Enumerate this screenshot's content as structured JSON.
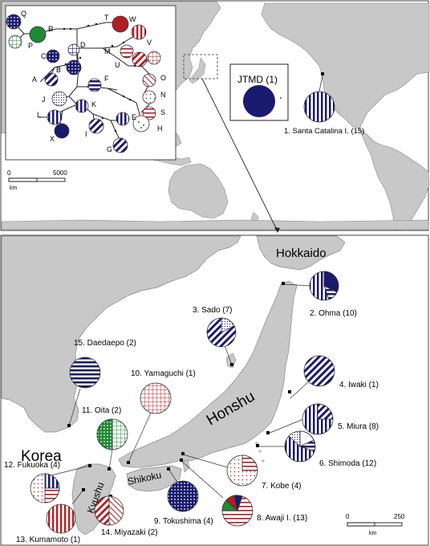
{
  "colors": {
    "navy": "#1a1a6e",
    "red": "#b01e23",
    "green": "#1e8a34",
    "land": "#c8c8c8",
    "sea": "#ffffff",
    "border": "#444444"
  },
  "world_map": {
    "jtmd_label": "JTMD (1)",
    "scale_start": "0",
    "scale_end": "5000",
    "scale_unit": "km",
    "site1_label": "1. Santa Catalina I. (15)"
  },
  "network": {
    "nodes": [
      {
        "id": "Q",
        "pattern": "navy-dots"
      },
      {
        "id": "R",
        "pattern": "green-solid"
      },
      {
        "id": "P",
        "pattern": "green-grid"
      },
      {
        "id": "C",
        "pattern": "navy-dots"
      },
      {
        "id": "D",
        "pattern": "navy-grid"
      },
      {
        "id": "T",
        "pattern": "red-solid"
      },
      {
        "id": "W",
        "pattern": "red-vstripes"
      },
      {
        "id": "M",
        "pattern": "red-hstripes"
      },
      {
        "id": "U",
        "pattern": "red-diag"
      },
      {
        "id": "V",
        "pattern": "red-cross"
      },
      {
        "id": "O",
        "pattern": "red-diag-thin"
      },
      {
        "id": "N",
        "pattern": "red-dots"
      },
      {
        "id": "S",
        "pattern": "red-hstripes"
      },
      {
        "id": "B",
        "pattern": "navy-dots"
      },
      {
        "id": "A",
        "pattern": "navy-diag"
      },
      {
        "id": "F",
        "pattern": "navy-hstripes"
      },
      {
        "id": "J",
        "pattern": "navy-dots-fine"
      },
      {
        "id": "K",
        "pattern": "navy-vstripes"
      },
      {
        "id": "L",
        "pattern": "navy-vstripes"
      },
      {
        "id": "I",
        "pattern": "navy-diag"
      },
      {
        "id": "E",
        "pattern": "navy-vstripes"
      },
      {
        "id": "H",
        "pattern": "navy-dots-sparse"
      },
      {
        "id": "X",
        "pattern": "navy-solid"
      },
      {
        "id": "G",
        "pattern": "navy-diag"
      }
    ]
  },
  "japan_map": {
    "scale_start": "0",
    "scale_end": "250",
    "scale_unit": "km",
    "region_labels": {
      "hokkaido": "Hokkaido",
      "honshu": "Honshu",
      "korea": "Korea",
      "kyushu": "Kyushu",
      "shikoku": "Shikoku"
    },
    "sites": [
      {
        "id": "2",
        "label": "2. Ohma (10)"
      },
      {
        "id": "3",
        "label": "3. Sado (7)"
      },
      {
        "id": "4",
        "label": "4. Iwaki (1)"
      },
      {
        "id": "5",
        "label": "5. Miura (8)"
      },
      {
        "id": "6",
        "label": "6. Shimoda (12)"
      },
      {
        "id": "7",
        "label": "7. Kobe (4)"
      },
      {
        "id": "8",
        "label": "8. Awaji I. (13)"
      },
      {
        "id": "9",
        "label": "9. Tokushima (4)"
      },
      {
        "id": "10",
        "label": "10. Yamaguchi (1)"
      },
      {
        "id": "11",
        "label": "11. Oita (2)"
      },
      {
        "id": "12",
        "label": "12. Fukuoka (4)"
      },
      {
        "id": "13",
        "label": "13. Kumamoto (1)"
      },
      {
        "id": "14",
        "label": "14. Miyazaki (2)"
      },
      {
        "id": "15",
        "label": "15. Daedaepo (2)"
      }
    ]
  }
}
